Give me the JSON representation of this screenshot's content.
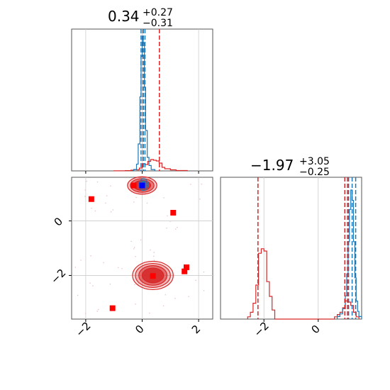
{
  "chart_data": {
    "type": "corner",
    "grid": true,
    "colors": {
      "red": "#d62728",
      "blue": "#1f77b4",
      "marker_red": "#ff0000",
      "marker_blue": "#0000ff"
    },
    "titles": [
      {
        "main": "0.34",
        "sup": "+0.27",
        "sub": "−0.31"
      },
      {
        "main": "−1.97",
        "sup": "+3.05",
        "sub": "−0.25"
      }
    ],
    "param1": {
      "range": [
        -2.5,
        2.5
      ],
      "ticks": [
        -2,
        0,
        2
      ],
      "tick_labels": [
        "−2",
        "0",
        "2"
      ],
      "quantiles_red": [
        0.03,
        0.61
      ],
      "quantiles_blue": [
        -0.04,
        0.04,
        0.1
      ],
      "hist_red": {
        "edges": [
          -1.0,
          -0.8,
          -0.6,
          -0.4,
          -0.3,
          -0.2,
          -0.1,
          0.0,
          0.1,
          0.2,
          0.3,
          0.4,
          0.5,
          0.6,
          0.7,
          0.8,
          1.0,
          1.2,
          1.6
        ],
        "counts": [
          0.002,
          0.004,
          0.008,
          0.02,
          0.04,
          0.03,
          0.08,
          0.2,
          0.18,
          0.27,
          0.32,
          0.3,
          0.28,
          0.22,
          0.1,
          0.06,
          0.03,
          0.01
        ]
      },
      "hist_blue": {
        "edges": [
          -0.3,
          -0.2,
          -0.14,
          -0.08,
          -0.04,
          0.0,
          0.04,
          0.08,
          0.12,
          0.18,
          0.24,
          0.32,
          0.45
        ],
        "counts": [
          0.01,
          0.05,
          0.2,
          0.55,
          0.85,
          1.0,
          0.95,
          0.62,
          0.3,
          0.1,
          0.04,
          0.01
        ]
      }
    },
    "param2": {
      "range": [
        -3.6,
        1.6
      ],
      "ticks": [
        -2,
        0
      ],
      "tick_labels": [
        "−2",
        "0"
      ],
      "quantiles_red": [
        -2.22,
        0.98,
        1.08
      ],
      "quantiles_blue": [
        1.12,
        1.25,
        1.38
      ],
      "hist_red": {
        "edges": [
          -2.6,
          -2.5,
          -2.4,
          -2.3,
          -2.2,
          -2.1,
          -2.0,
          -1.9,
          -1.8,
          -1.7,
          -1.6,
          0.6,
          0.7,
          0.8,
          0.9,
          1.0,
          1.1,
          1.2,
          1.3,
          1.4,
          1.5
        ],
        "counts": [
          0.02,
          0.06,
          0.14,
          0.3,
          0.58,
          0.62,
          0.6,
          0.33,
          0.2,
          0.08,
          0.0,
          0.02,
          0.04,
          0.06,
          0.1,
          0.16,
          0.15,
          0.12,
          0.06,
          0.02
        ]
      },
      "hist_blue": {
        "edges": [
          0.7,
          0.8,
          0.9,
          1.0,
          1.05,
          1.1,
          1.15,
          1.2,
          1.25,
          1.3,
          1.35,
          1.4,
          1.45,
          1.5,
          1.6
        ],
        "counts": [
          0.02,
          0.04,
          0.08,
          0.18,
          0.35,
          0.6,
          0.85,
          1.0,
          0.92,
          0.6,
          0.32,
          0.14,
          0.06,
          0.02
        ]
      }
    },
    "scatter_2d": {
      "xrange": [
        -2.5,
        2.5
      ],
      "yrange": [
        -3.6,
        1.6
      ],
      "xticks": [
        -2,
        0,
        2
      ],
      "yticks": [
        -2,
        0
      ],
      "contours_red": [
        {
          "cx": 0.38,
          "cy": -2.0,
          "levels": [
            [
              0.72,
              0.52
            ],
            [
              0.62,
              0.44
            ],
            [
              0.5,
              0.36
            ],
            [
              0.38,
              0.27
            ]
          ]
        },
        {
          "cx": 0.0,
          "cy": 1.3,
          "levels": [
            [
              0.52,
              0.32
            ],
            [
              0.42,
              0.25
            ],
            [
              0.3,
              0.18
            ]
          ]
        }
      ],
      "contours_blue": [
        {
          "cx": 0.05,
          "cy": 1.33,
          "levels": [
            [
              0.16,
              0.22
            ],
            [
              0.09,
              0.13
            ]
          ]
        }
      ],
      "markers_red": [
        [
          -1.8,
          0.8
        ],
        [
          -0.3,
          1.3
        ],
        [
          1.1,
          0.3
        ],
        [
          0.38,
          -2.02
        ],
        [
          1.57,
          -1.7
        ],
        [
          1.5,
          -1.85
        ],
        [
          -1.05,
          -3.2
        ]
      ],
      "markers_blue": [
        [
          0.0,
          1.3
        ]
      ]
    }
  }
}
